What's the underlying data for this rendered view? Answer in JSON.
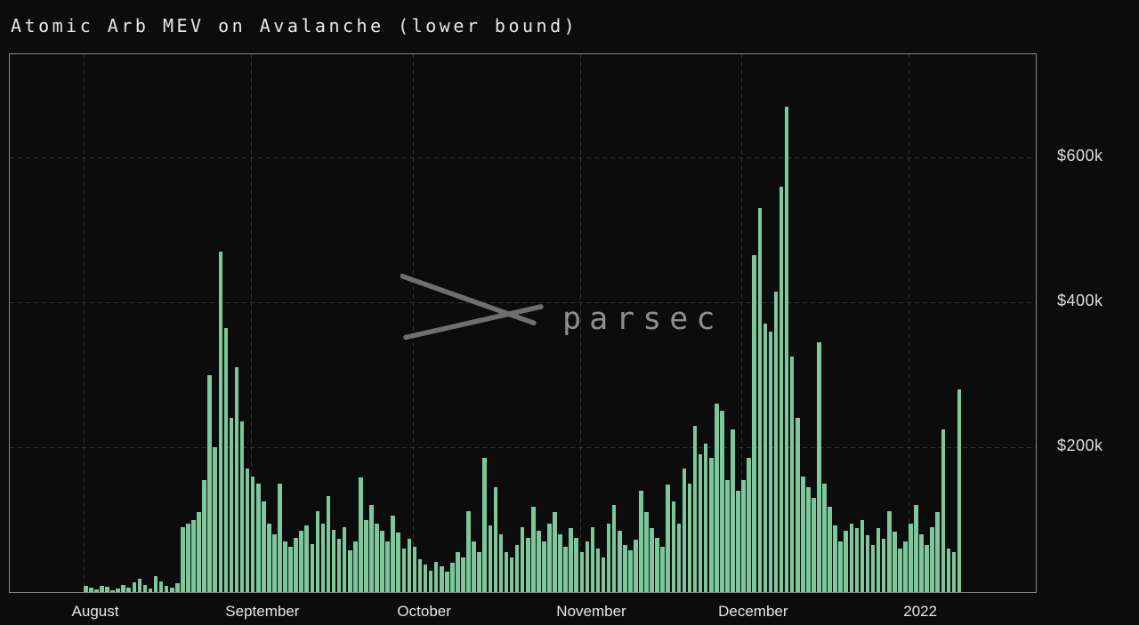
{
  "title": "Atomic Arb MEV on Avalanche (lower bound)",
  "watermark": {
    "text": "parsec",
    "icon": "parsec-cross-logo"
  },
  "colors": {
    "background": "#0c0c0c",
    "bar": "#7cc79b",
    "grid": "#343434",
    "frame": "#878787",
    "title_text": "#eae8e4",
    "axis_text": "#e3e3e3",
    "watermark_text": "#8f8f8f"
  },
  "y_axis": {
    "labels": [
      "$600k",
      "$400k",
      "$200k"
    ],
    "tick_values_k": [
      600,
      400,
      200
    ]
  },
  "x_axis": {
    "labels": [
      "August",
      "September",
      "October",
      "November",
      "December",
      "2022"
    ]
  },
  "chart_data": {
    "type": "bar",
    "title": "Atomic Arb MEV on Avalanche (lower bound)",
    "frequency": "daily",
    "start_date": "2021-08-01",
    "unit": "USD thousands",
    "ylim_k": [
      0,
      742
    ],
    "y_ticks_k": [
      200,
      400,
      600
    ],
    "grid": true,
    "legend": "none",
    "month_ticks": [
      "August",
      "September",
      "October",
      "November",
      "December",
      "2022"
    ],
    "month_tick_day_offsets": [
      0,
      31,
      61,
      92,
      122,
      153
    ],
    "values_k": [
      8,
      6,
      4,
      9,
      7,
      3,
      5,
      10,
      6,
      14,
      18,
      10,
      5,
      22,
      15,
      8,
      6,
      12,
      90,
      95,
      100,
      110,
      155,
      300,
      200,
      470,
      365,
      240,
      310,
      235,
      170,
      160,
      150,
      125,
      95,
      80,
      150,
      70,
      62,
      75,
      85,
      92,
      66,
      112,
      95,
      132,
      86,
      74,
      90,
      58,
      70,
      158,
      100,
      120,
      95,
      85,
      70,
      105,
      82,
      60,
      74,
      62,
      45,
      38,
      30,
      42,
      35,
      28,
      40,
      55,
      48,
      112,
      70,
      55,
      185,
      92,
      145,
      80,
      55,
      48,
      65,
      90,
      75,
      118,
      85,
      70,
      95,
      110,
      80,
      62,
      88,
      75,
      55,
      70,
      90,
      60,
      48,
      95,
      120,
      85,
      65,
      58,
      72,
      140,
      110,
      88,
      75,
      62,
      148,
      125,
      95,
      170,
      150,
      230,
      190,
      205,
      185,
      260,
      250,
      155,
      225,
      140,
      155,
      185,
      465,
      530,
      370,
      360,
      415,
      560,
      670,
      325,
      240,
      160,
      145,
      130,
      345,
      150,
      118,
      92,
      70,
      85,
      95,
      88,
      100,
      78,
      65,
      88,
      74,
      112,
      84,
      60,
      70,
      95,
      120,
      80,
      65,
      90,
      110,
      225,
      60,
      55,
      280
    ]
  }
}
